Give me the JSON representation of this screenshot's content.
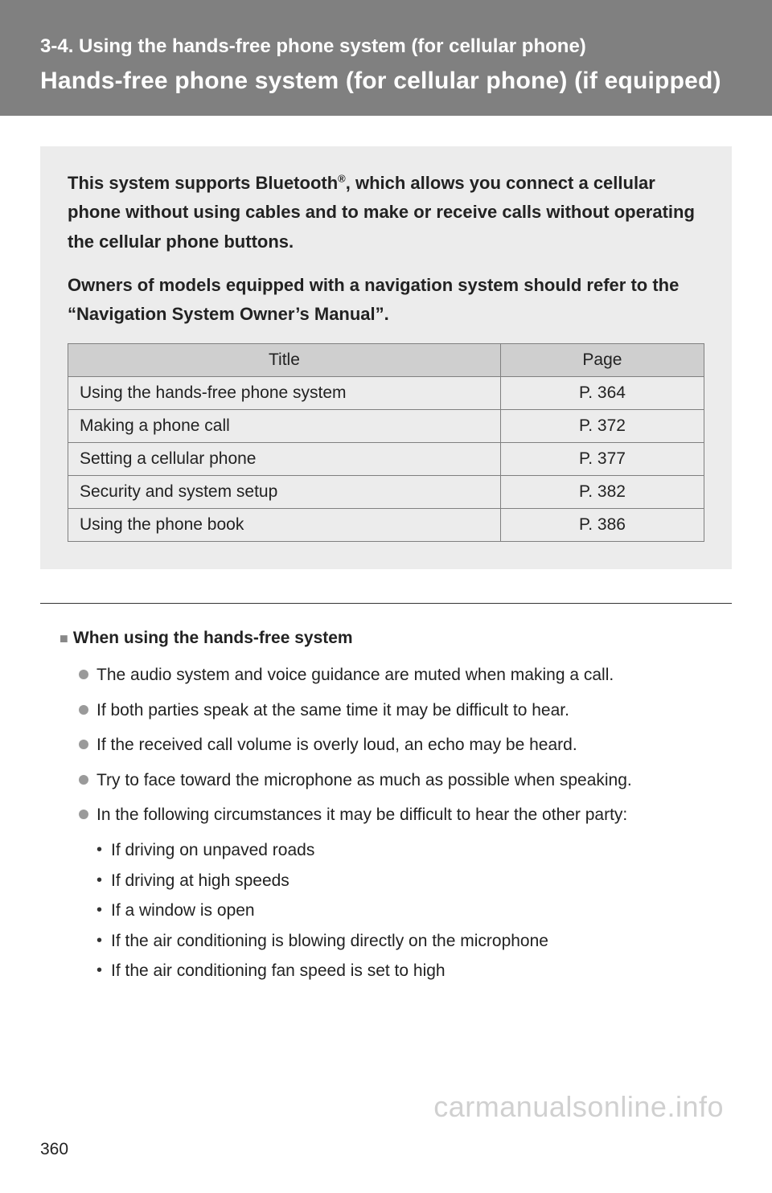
{
  "header": {
    "section": "3-4. Using the hands-free phone system (for cellular phone)",
    "title": "Hands-free phone system (for cellular phone) (if equipped)"
  },
  "intro": {
    "para1_pre": "This system supports Bluetooth",
    "para1_sup": "®",
    "para1_post": ", which allows you connect a cellular phone without using cables and to make or receive calls without operating the cellular phone buttons.",
    "para2": "Owners of models equipped with a navigation system should refer to the “Navigation System Owner’s Manual”."
  },
  "table": {
    "headers": {
      "title": "Title",
      "page": "Page"
    },
    "rows": [
      {
        "title": "Using the hands-free phone system",
        "page": "P. 364"
      },
      {
        "title": "Making a phone call",
        "page": "P. 372"
      },
      {
        "title": "Setting a cellular phone",
        "page": "P. 377"
      },
      {
        "title": "Security and system setup",
        "page": "P. 382"
      },
      {
        "title": "Using the phone book",
        "page": "P. 386"
      }
    ]
  },
  "body": {
    "subheading": "When using the hands-free system",
    "bullets": [
      "The audio system and voice guidance are muted when making a call.",
      "If both parties speak at the same time it may be difficult to hear.",
      "If the received call volume is overly loud, an echo may be heard.",
      "Try to face toward the microphone as much as possible when speaking.",
      "In the following circumstances it may be difficult to hear the other party:"
    ],
    "sub_bullets": [
      "If driving on unpaved roads",
      "If driving at high speeds",
      "If a window is open",
      "If the air conditioning is blowing directly on the microphone",
      "If the air conditioning fan speed is set to high"
    ]
  },
  "page_number": "360",
  "watermark": "carmanualsonline.info",
  "colors": {
    "header_bg": "#808080",
    "box_bg": "#ececec",
    "th_bg": "#cfcfcf",
    "border": "#808080",
    "text": "#222222"
  }
}
